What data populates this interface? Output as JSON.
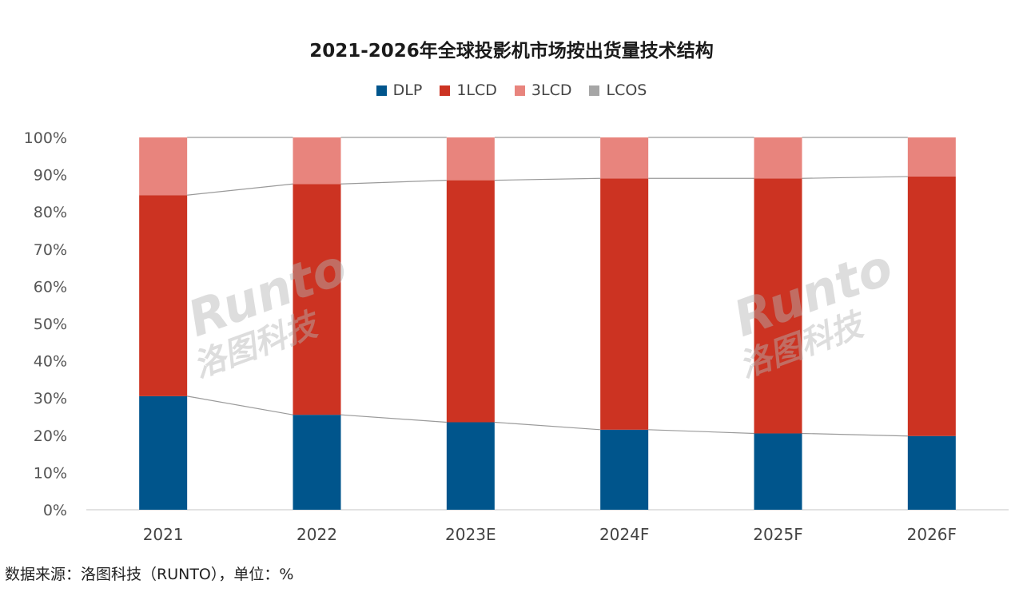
{
  "chart_data": {
    "type": "bar",
    "stacked": true,
    "title": "2021-2026年全球投影机市场按出货量技术结构",
    "categories": [
      "2021",
      "2022",
      "2023E",
      "2024F",
      "2025F",
      "2026F"
    ],
    "series": [
      {
        "name": "DLP",
        "color": "#00558C",
        "values": [
          30.5,
          25.5,
          23.5,
          21.5,
          20.5,
          19.8
        ]
      },
      {
        "name": "1LCD",
        "color": "#CC3322",
        "values": [
          54.0,
          62.0,
          65.0,
          67.5,
          68.5,
          69.7
        ]
      },
      {
        "name": "3LCD",
        "color": "#E8847D",
        "values": [
          15.5,
          12.5,
          11.5,
          11.0,
          11.0,
          10.5
        ]
      },
      {
        "name": "LCOS",
        "color": "#A6A6A6",
        "values": [
          0,
          0,
          0,
          0,
          0,
          0
        ]
      }
    ],
    "y_ticks": [
      "0%",
      "10%",
      "20%",
      "30%",
      "40%",
      "50%",
      "60%",
      "70%",
      "80%",
      "90%",
      "100%"
    ],
    "ylim": [
      0,
      100
    ],
    "legend_position": "top",
    "grid": false
  },
  "watermark": {
    "latin": "Runto",
    "cjk": "洛图科技"
  },
  "source_note": "数据来源：洛图科技（RUNTO），单位：%"
}
